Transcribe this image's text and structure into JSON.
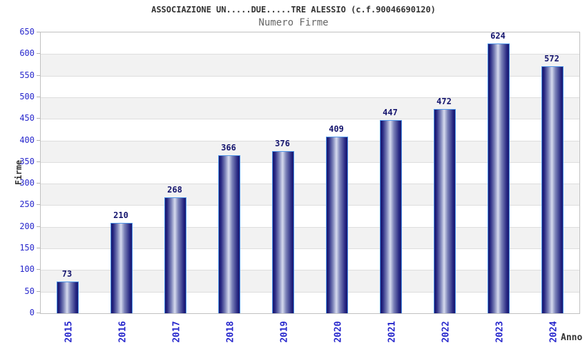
{
  "header": {
    "title": "ASSOCIAZIONE UN.....DUE.....TRE ALESSIO (c.f.90046690120)",
    "subtitle": "Numero Firme"
  },
  "chart_data": {
    "type": "bar",
    "title": "Numero Firme",
    "categories": [
      "2015",
      "2016",
      "2017",
      "2018",
      "2019",
      "2020",
      "2021",
      "2022",
      "2023",
      "2024"
    ],
    "values": [
      73,
      210,
      268,
      366,
      376,
      409,
      447,
      472,
      624,
      572
    ],
    "xlabel": "Anno",
    "ylabel": "Firme",
    "ylim": [
      0,
      650
    ],
    "ytick_step": 50,
    "grid": "horizontal alternating gray/white bands every 50 units",
    "legend": "none",
    "value_labels": "above each bar"
  },
  "colors": {
    "axis_tick_label_blue": "#2626cc",
    "bar_value_navy": "#15156e",
    "title_color": "#333333",
    "subtitle_color": "#666666",
    "band_gray": "#f2f2f2",
    "band_white": "#ffffff",
    "gridline": "#dddddd",
    "plot_border": "#c0c0c0",
    "tick_mark": "#b0b0b0",
    "bar_border_lightblue": "#4d94e8",
    "bar_edge_dark": "#191970",
    "bar_mid": "#7b82b8",
    "bar_center_light": "#d6dbee"
  }
}
